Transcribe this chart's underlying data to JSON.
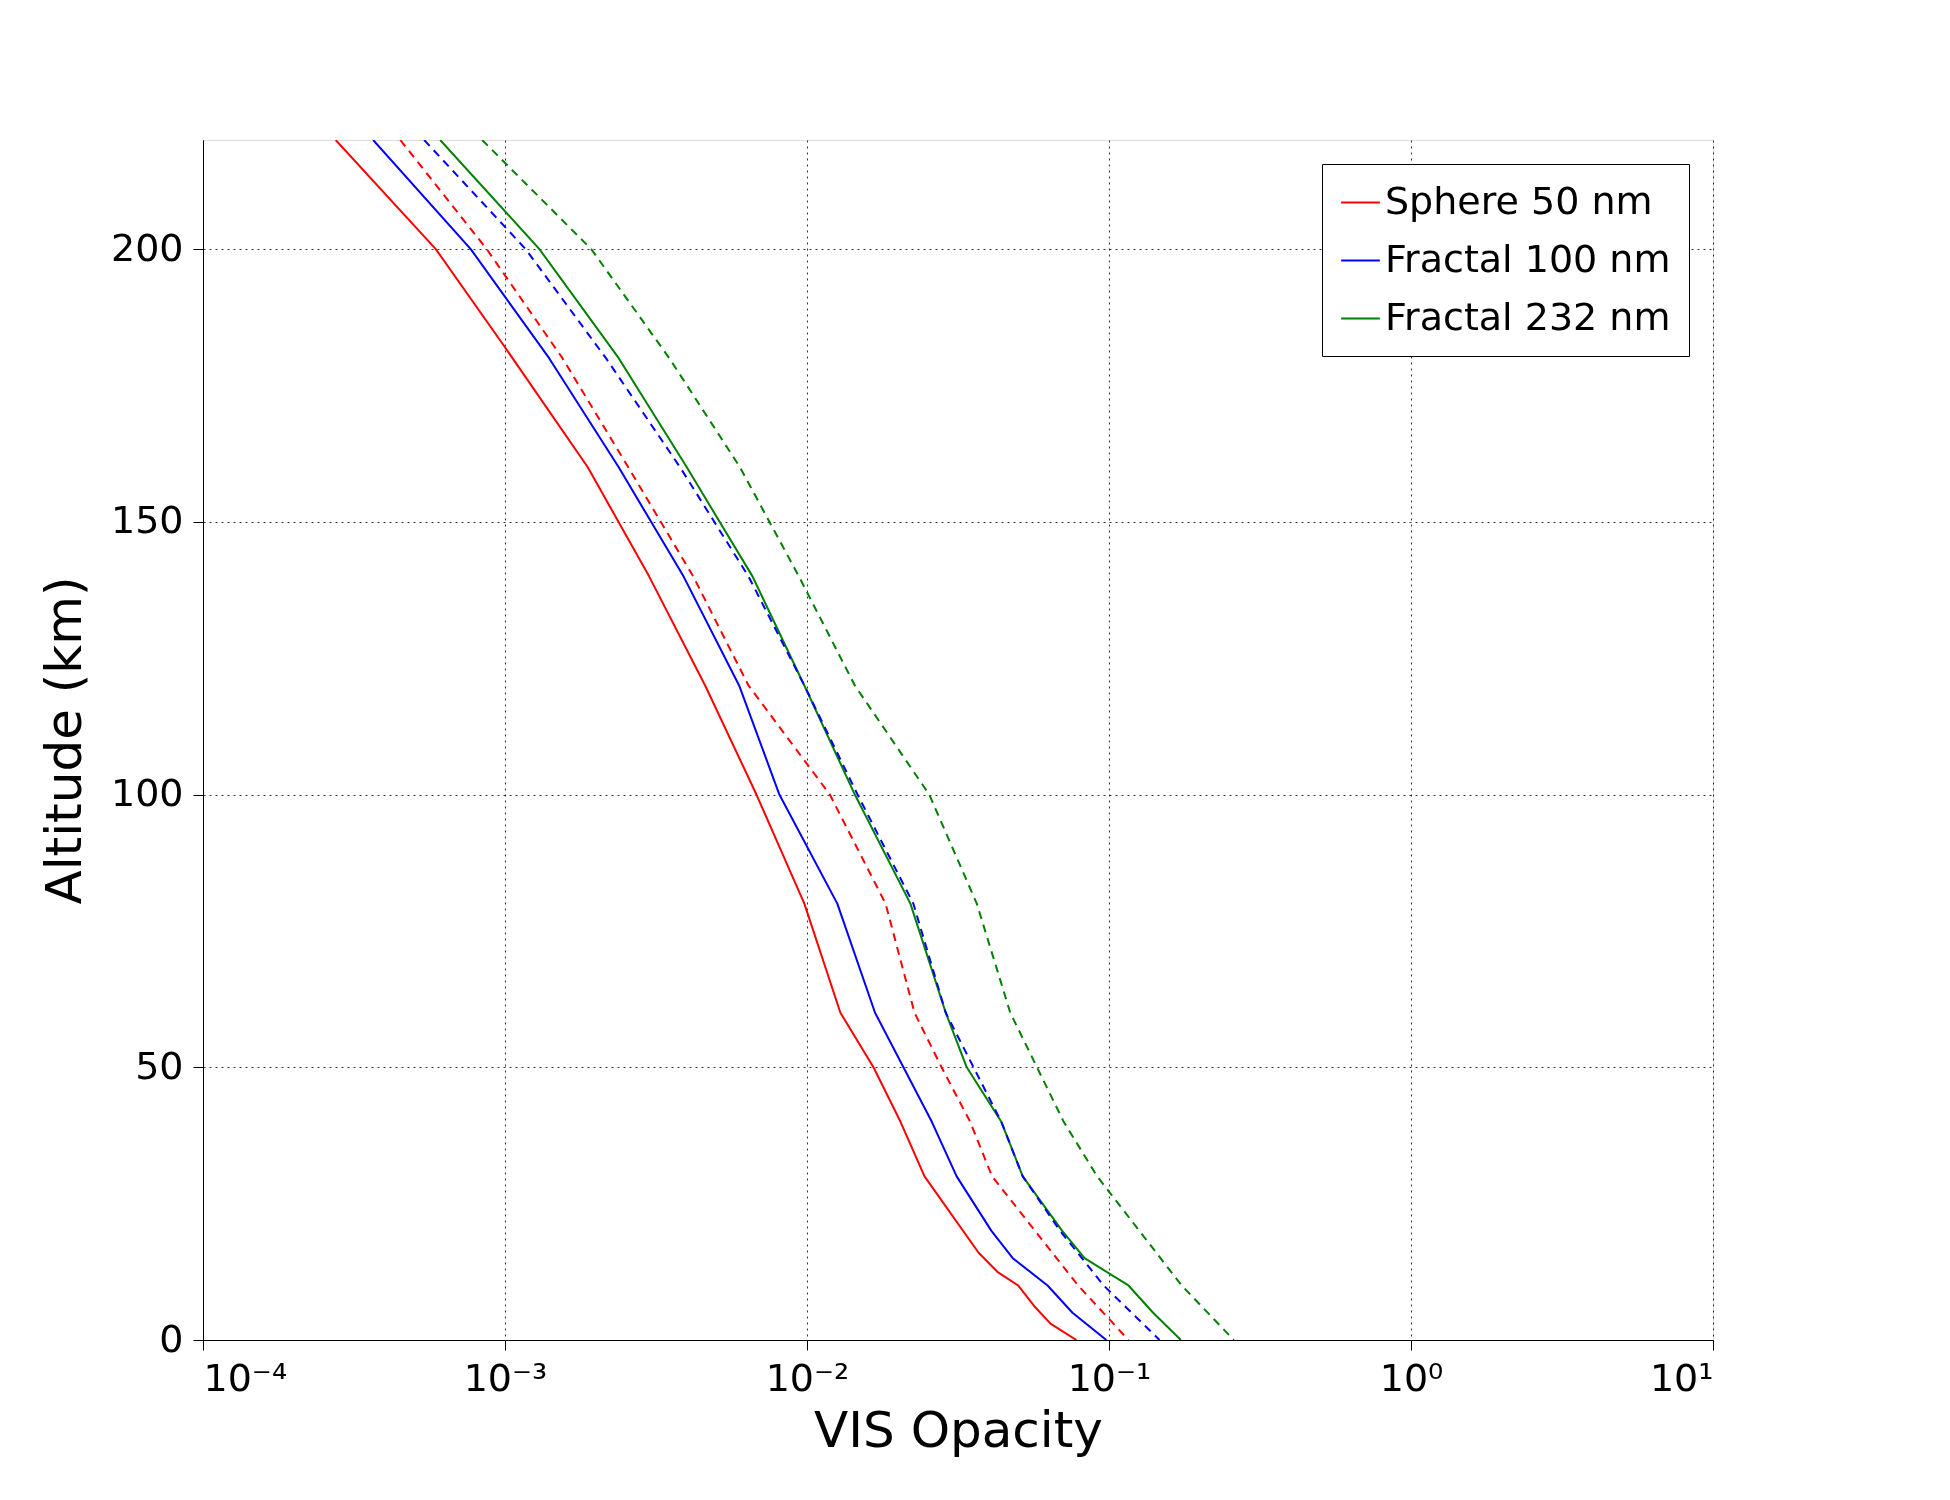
{
  "chart_data": {
    "type": "line",
    "xlabel": "VIS Opacity",
    "ylabel": "Altitude (km)",
    "log": "x",
    "xlim": [
      0.0001,
      10
    ],
    "ylim": [
      0,
      220
    ],
    "xticks": [
      {
        "value": 0.0001,
        "label": "10⁻⁴"
      },
      {
        "value": 0.001,
        "label": "10⁻³"
      },
      {
        "value": 0.01,
        "label": "10⁻²"
      },
      {
        "value": 0.1,
        "label": "10⁻¹"
      },
      {
        "value": 1,
        "label": "10⁰"
      },
      {
        "value": 10,
        "label": "10¹"
      }
    ],
    "yticks": [
      0,
      50,
      100,
      150,
      200
    ],
    "grid": true,
    "legend": "top right",
    "series": [
      {
        "name": "Sphere 50 nm",
        "color": "#ff0000",
        "line_style": "solid",
        "x": [
          0.000275,
          0.00059,
          0.001,
          0.00188,
          0.003,
          0.0046,
          0.0068,
          0.0098,
          0.0129,
          0.0166,
          0.0204,
          0.0245,
          0.037,
          0.0427,
          0.05,
          0.057,
          0.064,
          0.078
        ],
        "values": [
          220,
          200,
          182,
          160,
          140,
          120,
          100,
          80,
          60,
          50,
          40,
          30,
          16,
          12.5,
          10,
          6,
          3,
          0
        ]
      },
      {
        "name": "Fractal 100 nm",
        "color": "#0000ff",
        "line_style": "solid",
        "x": [
          0.000366,
          0.00077,
          0.0014,
          0.00238,
          0.0039,
          0.00596,
          0.0081,
          0.0126,
          0.0168,
          0.0259,
          0.0313,
          0.0408,
          0.048,
          0.0626,
          0.0757,
          0.098
        ],
        "values": [
          220,
          200,
          180,
          160,
          140,
          120,
          100,
          80,
          60,
          40,
          30,
          20,
          15,
          10,
          5,
          0
        ]
      },
      {
        "name": "Fractal 232 nm",
        "color": "#008000",
        "line_style": "solid",
        "x": [
          0.00061,
          0.0013,
          0.00238,
          0.004,
          0.0066,
          0.0098,
          0.0144,
          0.022,
          0.0288,
          0.0338,
          0.044,
          0.0518,
          0.07,
          0.083,
          0.116,
          0.14,
          0.173
        ],
        "values": [
          220,
          200,
          180,
          160,
          140,
          120,
          100,
          80,
          60,
          50,
          40,
          30,
          20,
          15,
          10,
          5,
          0
        ]
      },
      {
        "color": "#ff0000",
        "line_style": "dashed",
        "x": [
          0.00045,
          0.00087,
          0.00155,
          0.00256,
          0.0042,
          0.0064,
          0.0119,
          0.0182,
          0.0227,
          0.0279,
          0.0347,
          0.041,
          0.0569,
          0.079,
          0.116
        ],
        "values": [
          220,
          200,
          180,
          160,
          140,
          120,
          100,
          80,
          60,
          50,
          40,
          30,
          20,
          10,
          0
        ]
      },
      {
        "color": "#0000ff",
        "line_style": "dashed",
        "x": [
          0.00054,
          0.00117,
          0.00216,
          0.0038,
          0.0064,
          0.0098,
          0.0147,
          0.0225,
          0.0288,
          0.044,
          0.0518,
          0.0689,
          0.096,
          0.147
        ],
        "values": [
          220,
          200,
          180,
          160,
          140,
          120,
          100,
          80,
          60,
          40,
          30,
          20,
          10,
          0
        ]
      },
      {
        "color": "#008000",
        "line_style": "dashed",
        "x": [
          0.00084,
          0.00193,
          0.0035,
          0.006,
          0.0094,
          0.0144,
          0.0254,
          0.0365,
          0.0471,
          0.0708,
          0.0914,
          0.174,
          0.259
        ],
        "values": [
          220,
          200,
          180,
          160,
          140,
          120,
          100,
          80,
          60,
          40,
          30,
          10,
          0
        ]
      }
    ]
  }
}
